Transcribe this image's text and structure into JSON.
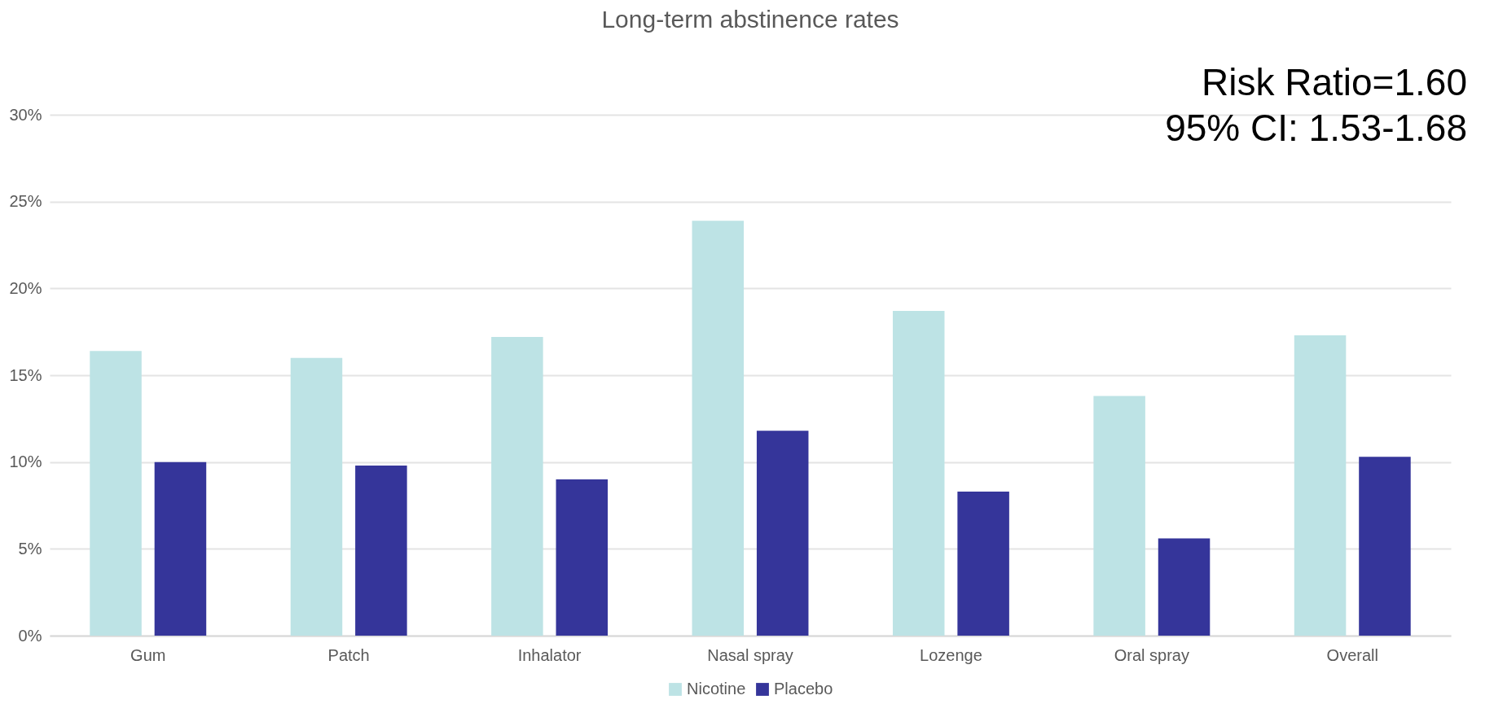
{
  "chart_data": {
    "type": "bar",
    "title": "Long-term abstinence rates",
    "categories": [
      "Gum",
      "Patch",
      "Inhalator",
      "Nasal spray",
      "Lozenge",
      "Oral spray",
      "Overall"
    ],
    "series": [
      {
        "name": "Nicotine",
        "color": "#bde3e5",
        "values": [
          16.4,
          16.0,
          17.2,
          23.9,
          18.7,
          13.8,
          17.3
        ]
      },
      {
        "name": "Placebo",
        "color": "#35359a",
        "values": [
          10.0,
          9.8,
          9.0,
          11.8,
          8.3,
          5.6,
          10.3
        ]
      }
    ],
    "ylim": [
      0,
      30
    ],
    "yticks": [
      {
        "value": 0,
        "label": "0%"
      },
      {
        "value": 5,
        "label": "5%"
      },
      {
        "value": 10,
        "label": "10%"
      },
      {
        "value": 15,
        "label": "15%"
      },
      {
        "value": 20,
        "label": "20%"
      },
      {
        "value": 25,
        "label": "25%"
      },
      {
        "value": 30,
        "label": "30%"
      }
    ],
    "grid": "y",
    "legend": "bottom",
    "annotations": [
      "Risk Ratio=1.60",
      "95% CI: 1.53-1.68"
    ]
  }
}
